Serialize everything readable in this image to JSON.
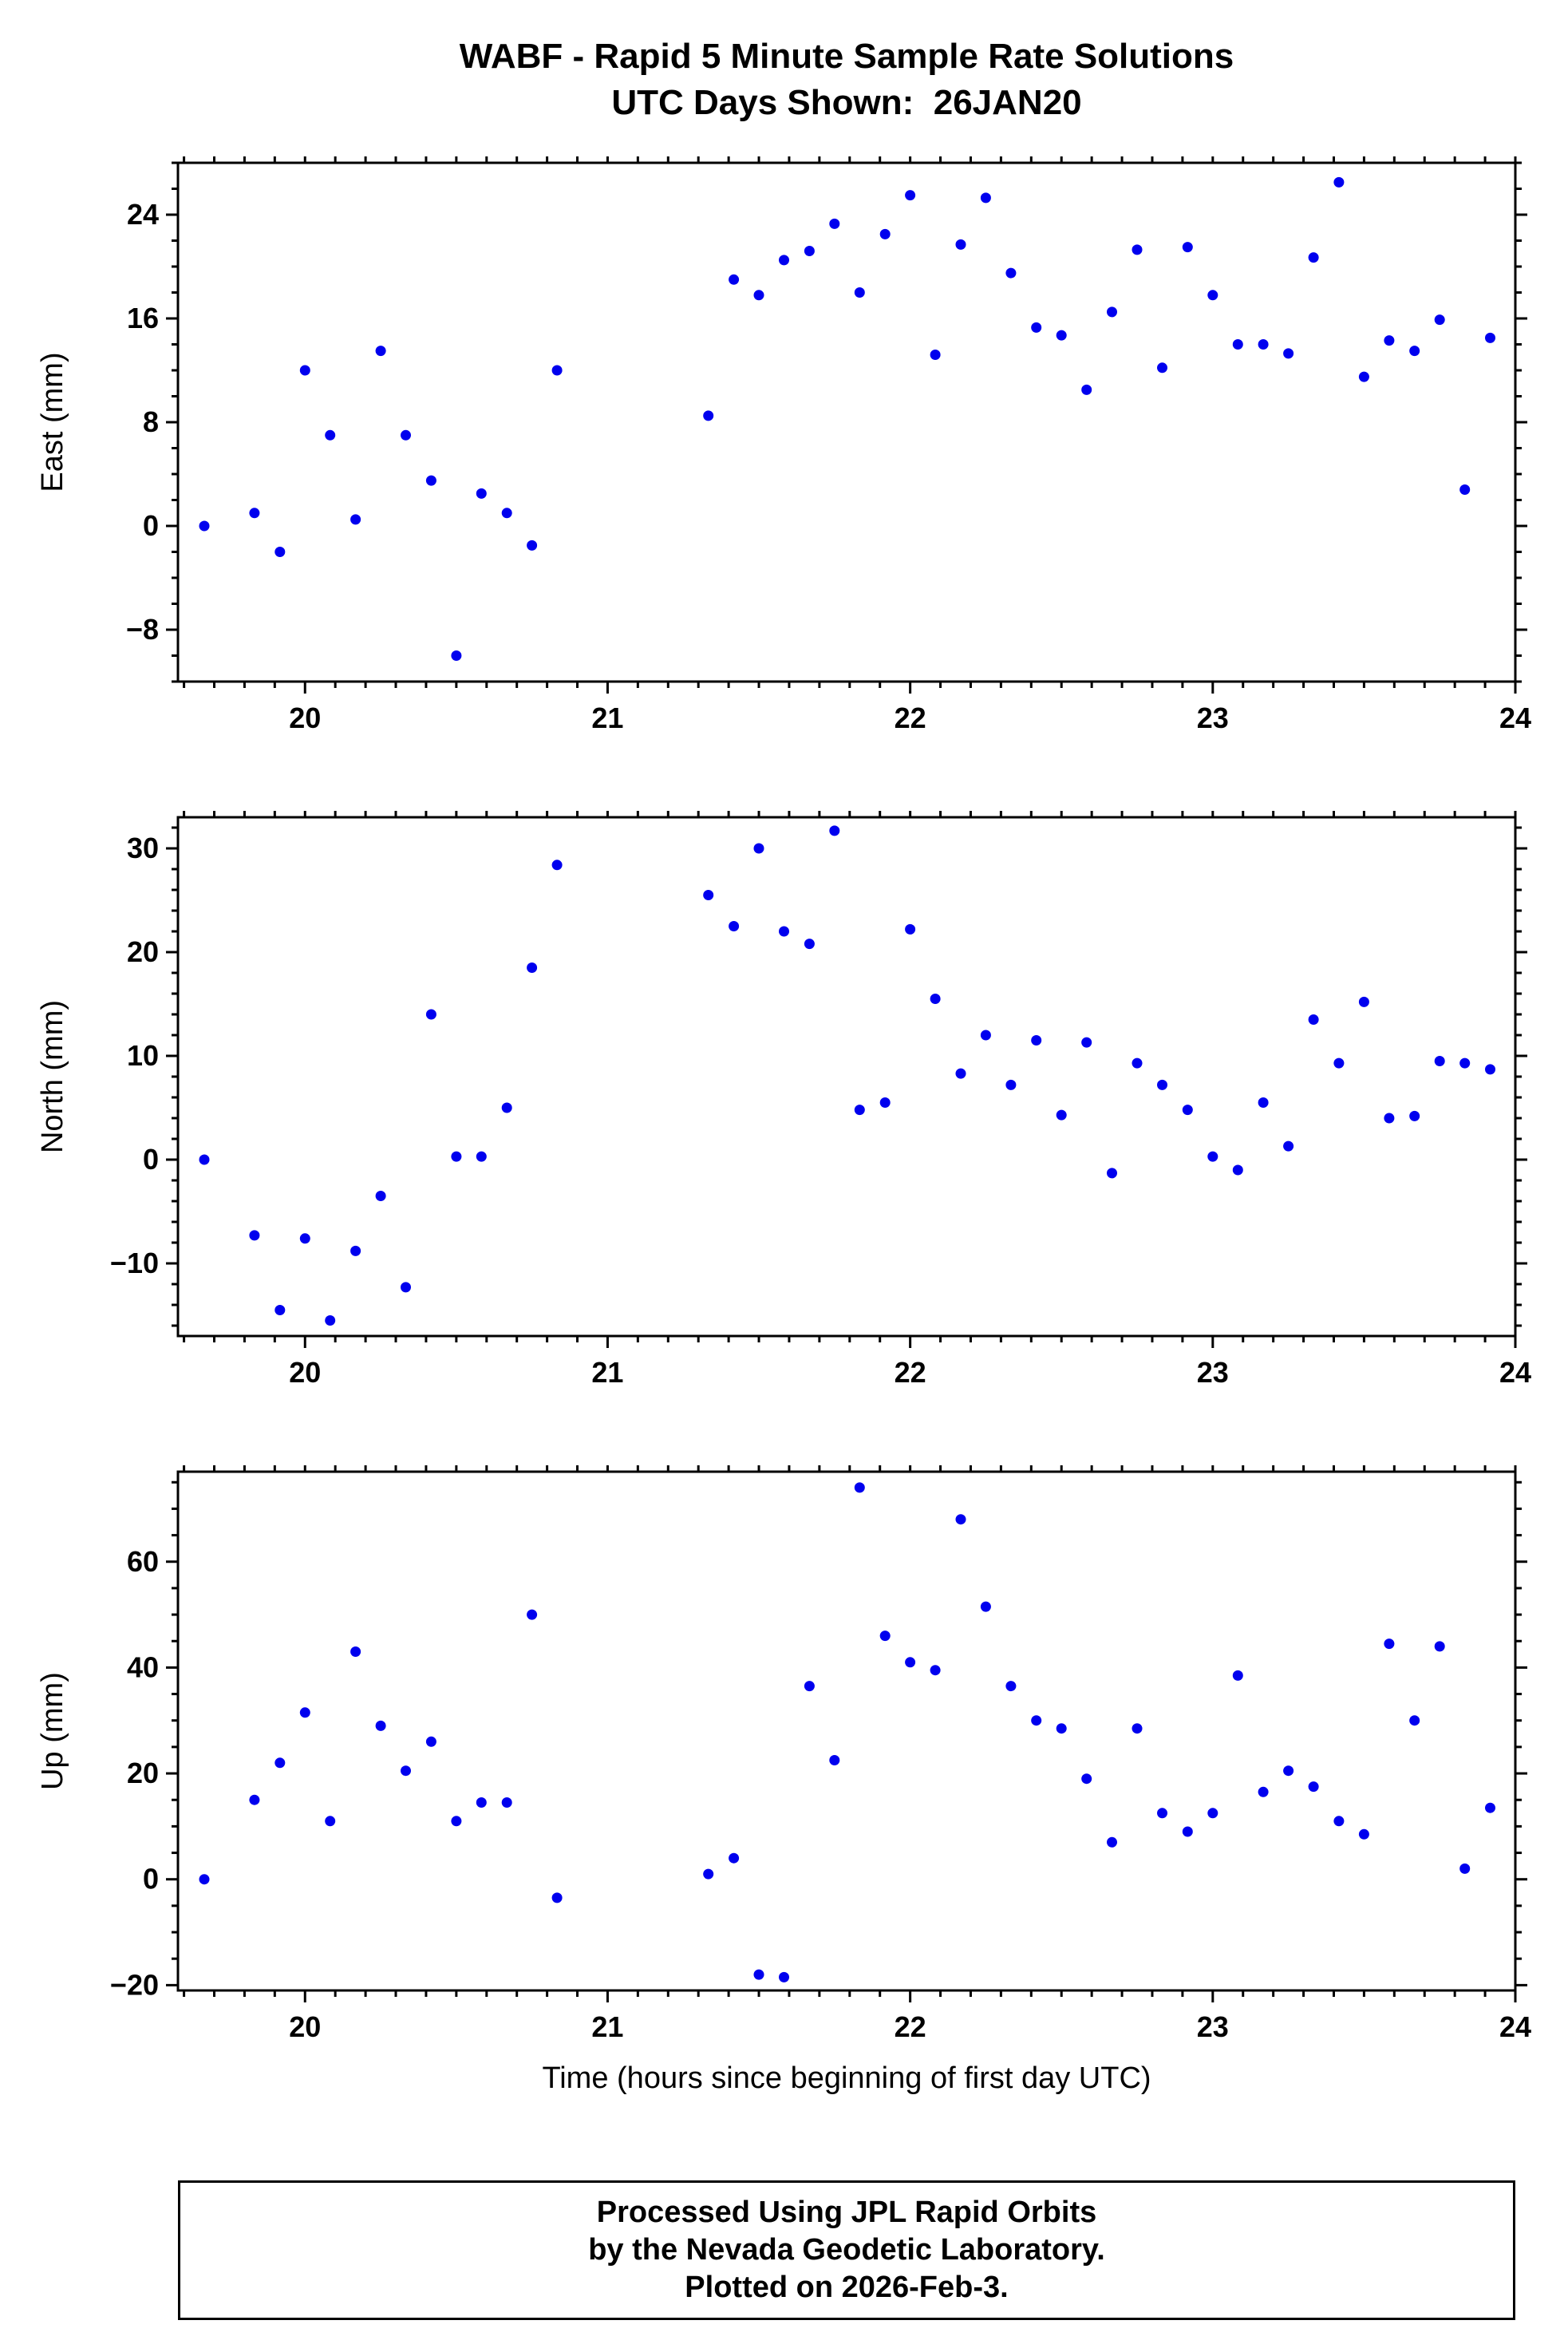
{
  "title": {
    "line1": "WABF - Rapid 5 Minute Sample Rate Solutions",
    "line2": "UTC Days Shown:  26JAN20"
  },
  "xlabel": "Time (hours since beginning of first day UTC)",
  "footer": {
    "line1": "Processed Using JPL Rapid Orbits",
    "line2": "by the Nevada Geodetic Laboratory.",
    "line3": "Plotted on 2026-Feb-3."
  },
  "colors": {
    "point": "#0000ee",
    "frame": "#000000"
  },
  "chart_data": [
    {
      "type": "scatter",
      "name": "east",
      "ylabel": "East (mm)",
      "xlim": [
        19.58,
        24
      ],
      "ylim": [
        -12,
        28
      ],
      "xticks": [
        20,
        21,
        22,
        23,
        24
      ],
      "yticks": [
        -8,
        0,
        8,
        16,
        24
      ],
      "xminor": 0.1,
      "yminor": 2,
      "x": [
        19.667,
        19.833,
        19.917,
        20.0,
        20.083,
        20.167,
        20.25,
        20.333,
        20.417,
        20.5,
        20.583,
        20.667,
        20.75,
        20.833,
        21.333,
        21.417,
        21.5,
        21.583,
        21.667,
        21.75,
        21.833,
        21.917,
        22.0,
        22.083,
        22.167,
        22.25,
        22.333,
        22.417,
        22.5,
        22.583,
        22.667,
        22.75,
        22.833,
        22.917,
        23.0,
        23.083,
        23.167,
        23.25,
        23.333,
        23.417,
        23.5,
        23.583,
        23.667,
        23.75,
        23.833,
        23.917
      ],
      "y": [
        0,
        1,
        -2,
        12,
        7,
        0.5,
        13.5,
        7,
        3.5,
        -10,
        2.5,
        1,
        -1.5,
        12,
        8.5,
        19,
        17.8,
        20.5,
        21.2,
        23.3,
        18,
        22.5,
        25.5,
        13.2,
        21.7,
        25.3,
        19.5,
        15.3,
        14.7,
        10.5,
        16.5,
        21.3,
        12.2,
        21.5,
        17.8,
        14,
        14,
        13.3,
        20.7,
        26.5,
        11.5,
        14.3,
        13.5,
        15.9,
        2.8,
        14.5
      ]
    },
    {
      "type": "scatter",
      "name": "north",
      "ylabel": "North (mm)",
      "xlim": [
        19.58,
        24
      ],
      "ylim": [
        -17,
        33
      ],
      "xticks": [
        20,
        21,
        22,
        23,
        24
      ],
      "yticks": [
        -10,
        0,
        10,
        20,
        30
      ],
      "xminor": 0.1,
      "yminor": 2,
      "x": [
        19.667,
        19.833,
        19.917,
        20.0,
        20.083,
        20.167,
        20.25,
        20.333,
        20.417,
        20.5,
        20.583,
        20.667,
        20.75,
        20.833,
        21.333,
        21.417,
        21.5,
        21.583,
        21.667,
        21.75,
        21.833,
        21.917,
        22.0,
        22.083,
        22.167,
        22.25,
        22.333,
        22.417,
        22.5,
        22.583,
        22.667,
        22.75,
        22.833,
        22.917,
        23.0,
        23.083,
        23.167,
        23.25,
        23.333,
        23.417,
        23.5,
        23.583,
        23.667,
        23.75,
        23.833,
        23.917
      ],
      "y": [
        0,
        -7.3,
        -14.5,
        -7.6,
        -15.5,
        -8.8,
        -3.5,
        -12.3,
        14,
        0.3,
        0.3,
        5,
        18.5,
        28.4,
        25.5,
        22.5,
        30,
        22,
        20.8,
        31.7,
        4.8,
        5.5,
        22.2,
        15.5,
        8.3,
        12,
        7.2,
        11.5,
        4.3,
        11.3,
        -1.3,
        9.3,
        7.2,
        4.8,
        0.3,
        -1,
        5.5,
        1.3,
        13.5,
        9.3,
        15.2,
        4,
        4.2,
        9.5,
        9.3,
        8.7
      ]
    },
    {
      "type": "scatter",
      "name": "up",
      "ylabel": "Up (mm)",
      "xlim": [
        19.58,
        24
      ],
      "ylim": [
        -21,
        77
      ],
      "xticks": [
        20,
        21,
        22,
        23,
        24
      ],
      "yticks": [
        -20,
        0,
        20,
        40,
        60
      ],
      "xminor": 0.1,
      "yminor": 5,
      "x": [
        19.667,
        19.833,
        19.917,
        20.0,
        20.083,
        20.167,
        20.25,
        20.333,
        20.417,
        20.5,
        20.583,
        20.667,
        20.75,
        20.833,
        21.333,
        21.417,
        21.5,
        21.583,
        21.667,
        21.75,
        21.833,
        21.917,
        22.0,
        22.083,
        22.167,
        22.25,
        22.333,
        22.417,
        22.5,
        22.583,
        22.667,
        22.75,
        22.833,
        22.917,
        23.0,
        23.083,
        23.167,
        23.25,
        23.333,
        23.417,
        23.5,
        23.583,
        23.667,
        23.75,
        23.833,
        23.917
      ],
      "y": [
        0,
        15,
        22,
        31.5,
        11,
        43,
        29,
        20.5,
        26,
        11,
        14.5,
        14.5,
        50,
        -3.5,
        1,
        4,
        -18,
        -18.5,
        36.5,
        22.5,
        74,
        46,
        41,
        39.5,
        68,
        51.5,
        36.5,
        30,
        28.5,
        19,
        7,
        28.5,
        12.5,
        9,
        12.5,
        38.5,
        16.5,
        20.5,
        17.5,
        11,
        8.5,
        44.5,
        30,
        44,
        2,
        13.5
      ]
    }
  ]
}
